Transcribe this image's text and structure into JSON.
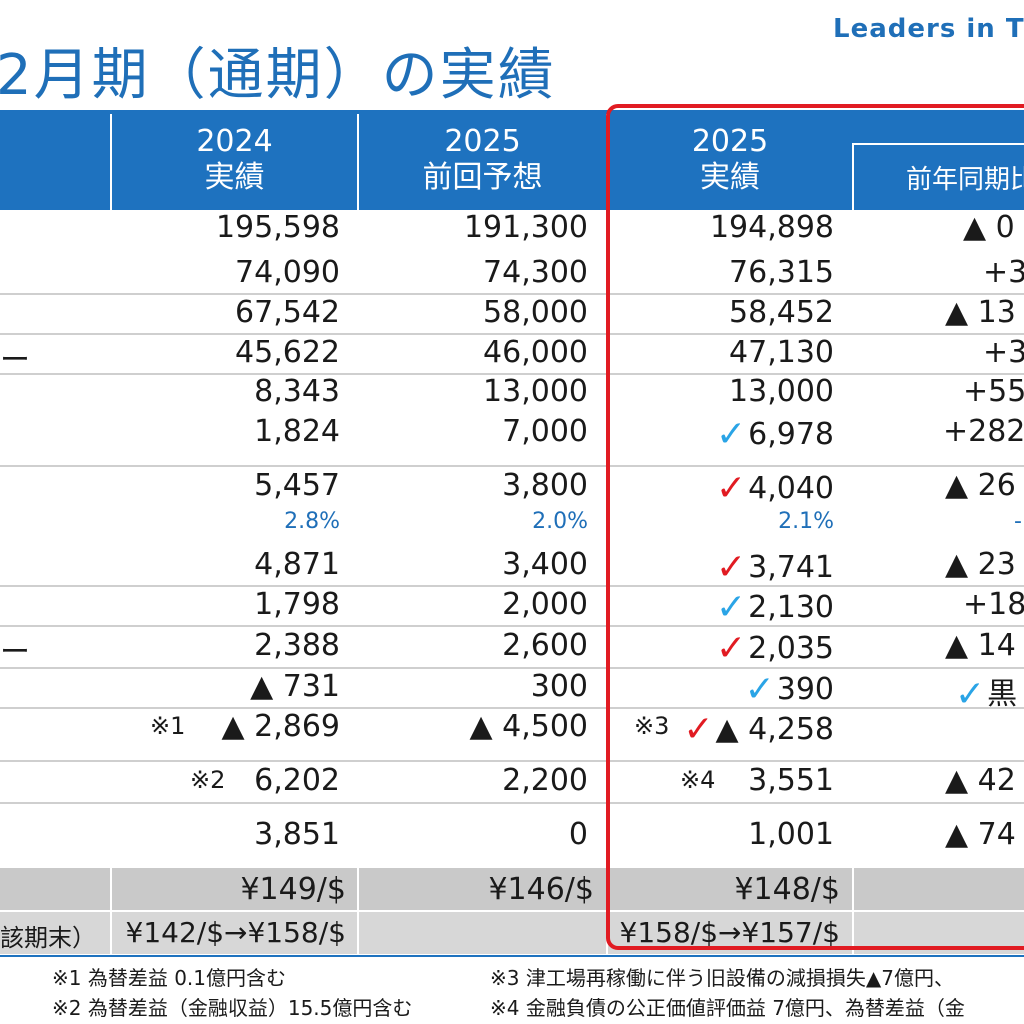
{
  "brand": "Leaders in T",
  "title": "2月期（通期）の実績",
  "headers": {
    "col1_year": "2024",
    "col1_label": "実績",
    "col2_year": "2025",
    "col2_label": "前回予想",
    "col3_year": "2025",
    "col3_label": "実績",
    "col4_label": "前年同期比"
  },
  "row_labels": {
    "r4": "ー",
    "r10": "ー",
    "fx_period_end": "該期末）"
  },
  "rows": [
    {
      "c1": "195,598",
      "c2": "191,300",
      "c3": "194,898",
      "c4": "▲ 0"
    },
    {
      "c1": "74,090",
      "c2": "74,300",
      "c3": "76,315",
      "c4": "+3"
    },
    {
      "c1": "67,542",
      "c2": "58,000",
      "c3": "58,452",
      "c4": "▲ 13"
    },
    {
      "c1": "45,622",
      "c2": "46,000",
      "c3": "47,130",
      "c4": "+3"
    },
    {
      "c1": "8,343",
      "c2": "13,000",
      "c3": "13,000",
      "c4": "+55"
    },
    {
      "c1": "1,824",
      "c2": "7,000",
      "c3": "6,978",
      "c4": "+282"
    },
    {
      "c1": "5,457",
      "c2": "3,800",
      "c3": "4,040",
      "c4": "▲ 26"
    },
    {
      "c1": "2.8%",
      "c2": "2.0%",
      "c3": "2.1%",
      "c4": "-"
    },
    {
      "c1": "4,871",
      "c2": "3,400",
      "c3": "3,741",
      "c4": "▲ 23"
    },
    {
      "c1": "1,798",
      "c2": "2,000",
      "c3": "2,130",
      "c4": "+18"
    },
    {
      "c1": "2,388",
      "c2": "2,600",
      "c3": "2,035",
      "c4": "▲ 14"
    },
    {
      "c1": "▲ 731",
      "c2": "300",
      "c3": "390",
      "c4": "黒"
    },
    {
      "c1": "▲ 2,869",
      "c2": "▲ 4,500",
      "c3": "▲ 4,258",
      "c4": ""
    },
    {
      "c1": "6,202",
      "c2": "2,200",
      "c3": "3,551",
      "c4": "▲ 42"
    },
    {
      "c1": "3,851",
      "c2": "0",
      "c3": "1,001",
      "c4": "▲ 74"
    }
  ],
  "marks": {
    "m1": "※1",
    "m2": "※2",
    "m3": "※3",
    "m4": "※4"
  },
  "fx": {
    "avg_c1": "¥149/$",
    "avg_c2": "¥146/$",
    "avg_c3": "¥148/$",
    "end_c1": "¥142/$→¥158/$",
    "end_c3": "¥158/$→¥157/$"
  },
  "check_colors": {
    "blue": "#2aa4e6",
    "red": "#e11b22"
  },
  "notes": {
    "n1": "※1 為替差益 0.1億円含む",
    "n2": "※2 為替差益（金融収益）15.5億円含む",
    "n3": "※3 津工場再稼働に伴う旧設備の減損損失▲7億円、",
    "n4": "※4 金融負債の公正価値評価益 7億円、為替差益（金"
  }
}
